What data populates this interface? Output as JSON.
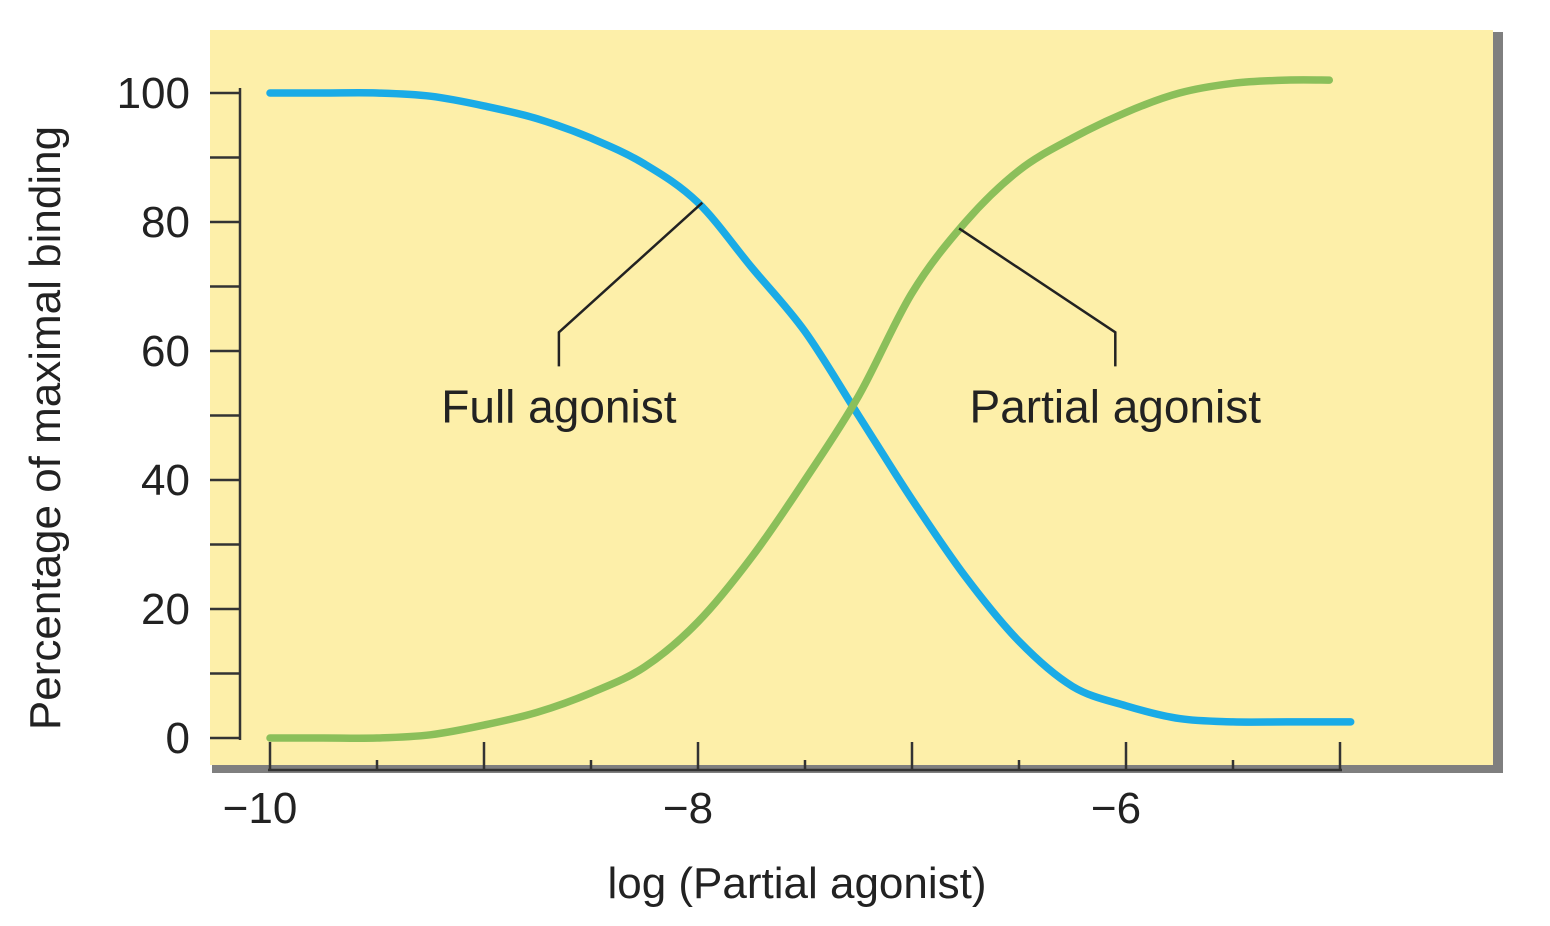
{
  "chart_data": {
    "type": "line",
    "title": "",
    "xlabel": "log (Partial agonist)",
    "ylabel": "Percentage of maximal binding",
    "xlim": [
      -10,
      -5
    ],
    "ylim": [
      0,
      100
    ],
    "x_ticks": [
      -10,
      -9.5,
      -9,
      -8.5,
      -8,
      -7.5,
      -7,
      -6.5,
      -6,
      -5.5,
      -5
    ],
    "x_tick_labels": [
      {
        "value": -10,
        "label": "−10"
      },
      {
        "value": -8,
        "label": "−8"
      },
      {
        "value": -6,
        "label": "−6"
      }
    ],
    "y_ticks": [
      0,
      10,
      20,
      30,
      40,
      50,
      60,
      70,
      80,
      90,
      100
    ],
    "y_tick_labels": [
      {
        "value": 0,
        "label": "0"
      },
      {
        "value": 20,
        "label": "20"
      },
      {
        "value": 40,
        "label": "40"
      },
      {
        "value": 60,
        "label": "60"
      },
      {
        "value": 80,
        "label": "80"
      },
      {
        "value": 100,
        "label": "100"
      }
    ],
    "grid": false,
    "background_color": "#fdefa9",
    "series": [
      {
        "name": "Full agonist",
        "color": "#1aabe6",
        "x": [
          -10,
          -9.75,
          -9.5,
          -9.25,
          -9,
          -8.75,
          -8.5,
          -8.25,
          -8,
          -7.75,
          -7.5,
          -7.25,
          -7,
          -6.75,
          -6.5,
          -6.25,
          -6,
          -5.75,
          -5.5,
          -5.25,
          -4.95
        ],
        "values": [
          100,
          100,
          100,
          99.5,
          98,
          96,
          93,
          89,
          83,
          73,
          63,
          50,
          37,
          25,
          15,
          8,
          5,
          3,
          2.5,
          2.5,
          2.5
        ]
      },
      {
        "name": "Partial agonist",
        "color": "#8bbf5a",
        "x": [
          -10,
          -9.75,
          -9.5,
          -9.25,
          -9,
          -8.75,
          -8.5,
          -8.25,
          -8,
          -7.75,
          -7.5,
          -7.25,
          -7,
          -6.75,
          -6.5,
          -6.25,
          -6,
          -5.75,
          -5.5,
          -5.25,
          -5.05
        ],
        "values": [
          0,
          0,
          0,
          0.5,
          2,
          4,
          7,
          11,
          18,
          28,
          40,
          53,
          69,
          80,
          88,
          93,
          97,
          100,
          101.5,
          102,
          102
        ]
      }
    ],
    "annotations": [
      {
        "text": "Full agonist",
        "series": "Full agonist",
        "target": {
          "x": -7.98,
          "y": 83
        },
        "label_at": {
          "x": -8.65,
          "y": 57
        }
      },
      {
        "text": "Partial agonist",
        "series": "Partial agonist",
        "target": {
          "x": -6.78,
          "y": 79
        },
        "label_at": {
          "x": -6.05,
          "y": 57
        }
      }
    ]
  }
}
